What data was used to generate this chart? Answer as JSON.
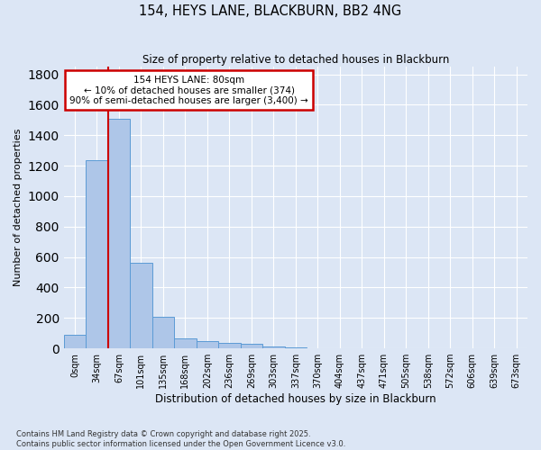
{
  "title": "154, HEYS LANE, BLACKBURN, BB2 4NG",
  "subtitle": "Size of property relative to detached houses in Blackburn",
  "xlabel": "Distribution of detached houses by size in Blackburn",
  "ylabel": "Number of detached properties",
  "footer_line1": "Contains HM Land Registry data © Crown copyright and database right 2025.",
  "footer_line2": "Contains public sector information licensed under the Open Government Licence v3.0.",
  "categories": [
    "0sqm",
    "34sqm",
    "67sqm",
    "101sqm",
    "135sqm",
    "168sqm",
    "202sqm",
    "236sqm",
    "269sqm",
    "303sqm",
    "337sqm",
    "370sqm",
    "404sqm",
    "437sqm",
    "471sqm",
    "505sqm",
    "538sqm",
    "572sqm",
    "606sqm",
    "639sqm",
    "673sqm"
  ],
  "values": [
    90,
    1235,
    1510,
    560,
    210,
    65,
    45,
    35,
    28,
    12,
    8,
    0,
    0,
    0,
    0,
    0,
    0,
    0,
    0,
    0,
    0
  ],
  "bar_color": "#aec6e8",
  "bar_edge_color": "#5b9bd5",
  "bg_color": "#dce6f5",
  "grid_color": "#ffffff",
  "annotation_text": "154 HEYS LANE: 80sqm\n← 10% of detached houses are smaller (374)\n90% of semi-detached houses are larger (3,400) →",
  "annotation_box_color": "#ffffff",
  "annotation_box_edge_color": "#cc0000",
  "vline_x": 2,
  "vline_color": "#cc0000",
  "ylim": [
    0,
    1850
  ],
  "yticks": [
    0,
    200,
    400,
    600,
    800,
    1000,
    1200,
    1400,
    1600,
    1800
  ]
}
